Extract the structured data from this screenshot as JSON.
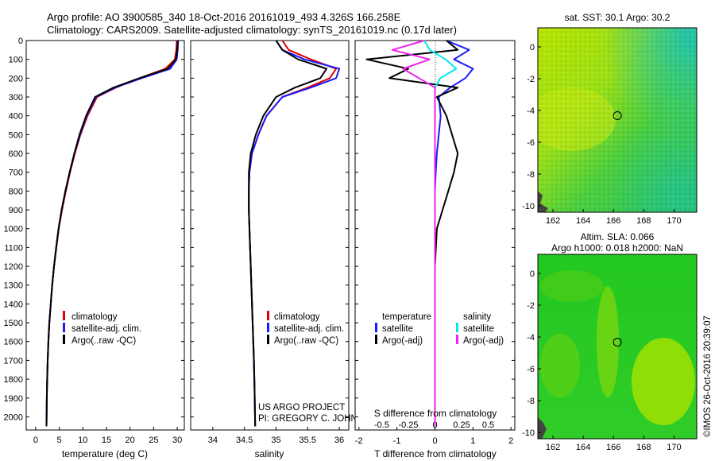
{
  "header": {
    "line1": "Argo profile: AO 3900585_340 18-Oct-2016 20161019_493 4.326S 166.258E",
    "line2": "Climatology: CARS2009. Satellite-adjusted climatology: synTS_20161019.nc (0.17d later)"
  },
  "colors": {
    "red": "#e00000",
    "blue": "#1a1aff",
    "black": "#000000",
    "cyan": "#00e8e8",
    "magenta": "#ee22ee"
  },
  "credit": {
    "line1": "US ARGO PROJECT",
    "line2": "PI: GREGORY C. JOHNSON"
  },
  "watermark": "©IMOS 26-Oct-2016 20:39:07",
  "chart_data": [
    {
      "type": "line",
      "id": "temperature",
      "xlabel": "temperature (deg C)",
      "xlim": [
        -2,
        31.5
      ],
      "ylim": [
        0,
        2070
      ],
      "y_reversed": true,
      "xticks": [
        0,
        5,
        10,
        15,
        20,
        25,
        30
      ],
      "yticks": [
        0,
        100,
        200,
        300,
        400,
        500,
        600,
        700,
        800,
        900,
        1000,
        1100,
        1200,
        1300,
        1400,
        1500,
        1600,
        1700,
        1800,
        1900,
        2000
      ],
      "legend": [
        "climatology",
        "satellite-adj. clim.",
        "Argo(..raw -QC)"
      ],
      "series": [
        {
          "name": "climatology",
          "color": "#e00000",
          "x": [
            29.9,
            29.8,
            29.5,
            27.5,
            22.0,
            17.0,
            13.0,
            11.0,
            9.5,
            8.3,
            7.3,
            6.4,
            5.6,
            4.9,
            4.4,
            3.9,
            3.5,
            3.2,
            2.9,
            2.7,
            2.55,
            2.4,
            2.3
          ],
          "y": [
            0,
            50,
            100,
            150,
            200,
            250,
            300,
            400,
            500,
            600,
            700,
            800,
            900,
            1000,
            1100,
            1200,
            1300,
            1400,
            1500,
            1600,
            1700,
            1850,
            2050
          ]
        },
        {
          "name": "satellite-adj. clim.",
          "color": "#1a1aff",
          "x": [
            30.2,
            30.1,
            29.9,
            28.5,
            22.5,
            16.8,
            12.8,
            10.8,
            9.4,
            8.2,
            7.2,
            6.3,
            5.5,
            4.85,
            4.35,
            3.9,
            3.5,
            3.2,
            2.9,
            2.7,
            2.55,
            2.4,
            2.3
          ],
          "y": [
            0,
            50,
            100,
            150,
            200,
            250,
            300,
            400,
            500,
            600,
            700,
            800,
            900,
            1000,
            1100,
            1200,
            1300,
            1400,
            1500,
            1600,
            1700,
            1850,
            2050
          ]
        },
        {
          "name": "Argo(..raw -QC)",
          "color": "#000000",
          "x": [
            30.1,
            30.0,
            29.7,
            28.0,
            22.0,
            16.5,
            12.6,
            10.7,
            9.3,
            8.2,
            7.2,
            6.3,
            5.5,
            4.85,
            4.35,
            3.9,
            3.5,
            3.2,
            2.9,
            2.7,
            2.55,
            2.4,
            2.3
          ],
          "y": [
            0,
            50,
            100,
            150,
            200,
            250,
            300,
            400,
            500,
            600,
            700,
            800,
            900,
            1000,
            1100,
            1200,
            1300,
            1400,
            1500,
            1600,
            1700,
            1850,
            2050
          ]
        }
      ]
    },
    {
      "type": "line",
      "id": "salinity",
      "xlabel": "salinity",
      "xlim": [
        33.65,
        36.15
      ],
      "ylim": [
        0,
        2070
      ],
      "y_reversed": true,
      "xticks": [
        34,
        34.5,
        35,
        35.5,
        36
      ],
      "xticklabels": [
        "34",
        "34.5",
        "35",
        "35.5",
        "36"
      ],
      "legend": [
        "climatology",
        "satellite-adj. clim.",
        "Argo(..raw -QC)"
      ],
      "series": [
        {
          "name": "climatology",
          "color": "#e00000",
          "x": [
            35.1,
            35.2,
            35.55,
            35.95,
            35.85,
            35.5,
            35.1,
            34.85,
            34.72,
            34.62,
            34.58,
            34.57,
            34.57,
            34.58,
            34.59,
            34.6,
            34.61,
            34.62,
            34.63,
            34.64,
            34.65,
            34.66,
            34.67
          ],
          "y": [
            0,
            50,
            100,
            150,
            200,
            250,
            300,
            400,
            500,
            600,
            700,
            800,
            900,
            1000,
            1100,
            1200,
            1300,
            1400,
            1500,
            1600,
            1700,
            1850,
            2050
          ]
        },
        {
          "name": "satellite-adj. clim.",
          "color": "#1a1aff",
          "x": [
            35.0,
            35.1,
            35.45,
            36.0,
            35.95,
            35.55,
            35.1,
            34.85,
            34.72,
            34.62,
            34.58,
            34.57,
            34.57,
            34.58,
            34.59,
            34.6,
            34.61,
            34.62,
            34.63,
            34.64,
            34.65,
            34.66,
            34.67
          ],
          "y": [
            0,
            50,
            100,
            150,
            200,
            250,
            300,
            400,
            500,
            600,
            700,
            800,
            900,
            1000,
            1100,
            1200,
            1300,
            1400,
            1500,
            1600,
            1700,
            1850,
            2050
          ]
        },
        {
          "name": "Argo(..raw -QC)",
          "color": "#000000",
          "x": [
            35.0,
            35.1,
            35.35,
            35.8,
            35.7,
            35.3,
            35.0,
            34.8,
            34.68,
            34.6,
            34.57,
            34.57,
            34.57,
            34.58,
            34.59,
            34.6,
            34.61,
            34.62,
            34.63,
            34.64,
            34.65,
            34.66,
            34.67
          ],
          "y": [
            0,
            50,
            100,
            150,
            200,
            250,
            300,
            400,
            500,
            600,
            700,
            800,
            900,
            1000,
            1100,
            1200,
            1300,
            1400,
            1500,
            1600,
            1700,
            1850,
            2050
          ]
        }
      ]
    },
    {
      "type": "line",
      "id": "differences",
      "xlabel": "T difference from climatology",
      "xlabel_top": "S difference from climatology",
      "xlim_T": [
        -2.1,
        2.1
      ],
      "xlim_S": [
        -0.75,
        0.75
      ],
      "ylim": [
        0,
        2070
      ],
      "y_reversed": true,
      "xticks_T": [
        -2,
        -1,
        0,
        1,
        2
      ],
      "xticks_S": [
        -0.5,
        -0.25,
        0,
        0.25,
        0.5
      ],
      "xticklabels_S": [
        "-0.5",
        "-0.25",
        "0",
        "0.25",
        "0.5"
      ],
      "legend_left_title": "temperature",
      "legend_right_title": "salinity",
      "legend": [
        "satellite",
        "Argo(-adj)",
        "satellite",
        "Argo(-adj)"
      ],
      "series": [
        {
          "name": "satellite",
          "group": "temperature",
          "axis": "T",
          "color": "#1a1aff",
          "x": [
            0.3,
            0.9,
            0.5,
            1.0,
            0.8,
            0.4,
            0.1,
            0.15,
            0.1,
            0.05,
            0.02,
            0.0,
            0.0,
            0.0,
            0.0,
            0.0,
            0.0,
            0.0,
            0.0,
            0.0
          ],
          "y": [
            0,
            50,
            100,
            150,
            200,
            250,
            300,
            400,
            500,
            600,
            700,
            800,
            900,
            1000,
            1200,
            1400,
            1600,
            1800,
            1900,
            2050
          ]
        },
        {
          "name": "Argo(-adj)",
          "group": "temperature",
          "axis": "T",
          "color": "#000000",
          "x": [
            0.3,
            0.6,
            -1.8,
            -0.7,
            -1.2,
            0.6,
            0.05,
            0.3,
            0.45,
            0.6,
            0.5,
            0.35,
            0.2,
            0.05,
            0.0,
            0.0,
            0.0,
            0.0,
            0.0,
            0.0
          ],
          "y": [
            0,
            50,
            100,
            150,
            200,
            250,
            300,
            400,
            500,
            600,
            700,
            800,
            900,
            1000,
            1200,
            1400,
            1600,
            1800,
            1900,
            2050
          ]
        },
        {
          "name": "satellite",
          "group": "salinity",
          "axis": "S",
          "color": "#00e8e8",
          "x": [
            -0.1,
            -0.05,
            0.1,
            0.2,
            0.05,
            0.0,
            0.0,
            0.0,
            0.0,
            0.0,
            0.0,
            0.0,
            0.0,
            0.0,
            0.0,
            0.0,
            0.0,
            0.0,
            0.0,
            0.0
          ],
          "y": [
            0,
            50,
            100,
            150,
            200,
            250,
            300,
            400,
            500,
            600,
            700,
            800,
            900,
            1000,
            1200,
            1400,
            1600,
            1800,
            1900,
            2050
          ]
        },
        {
          "name": "Argo(-adj)",
          "group": "salinity",
          "axis": "S",
          "color": "#ee22ee",
          "x": [
            -0.1,
            -0.4,
            -0.05,
            -0.3,
            -0.15,
            0.0,
            0.0,
            0.0,
            0.0,
            0.0,
            0.0,
            0.0,
            0.0,
            0.0,
            0.0,
            0.0,
            0.0,
            0.0,
            0.0,
            0.0
          ],
          "y": [
            0,
            50,
            100,
            150,
            200,
            250,
            300,
            400,
            500,
            600,
            700,
            800,
            900,
            1000,
            1200,
            1400,
            1600,
            1800,
            1900,
            2050
          ]
        }
      ]
    },
    {
      "type": "heatmap",
      "id": "sst-map",
      "title": "sat. SST: 30.1  Argo: 30.2",
      "xlim": [
        161,
        171.5
      ],
      "ylim": [
        -10.4,
        1.2
      ],
      "xticks": [
        162,
        164,
        166,
        168,
        170
      ],
      "yticks": [
        0,
        -2,
        -4,
        -6,
        -8,
        -10
      ],
      "argo_position": [
        166.258,
        -4.326
      ]
    },
    {
      "type": "heatmap",
      "id": "sla-map",
      "title_line1": "Altim. SLA: 0.066",
      "title_line2": "Argo h1000: 0.018 h2000: NaN",
      "xlim": [
        161,
        171.5
      ],
      "ylim": [
        -10.4,
        1.2
      ],
      "xticks": [
        162,
        164,
        166,
        168,
        170
      ],
      "yticks": [
        0,
        -2,
        -4,
        -6,
        -8,
        -10
      ],
      "argo_position": [
        166.258,
        -4.326
      ]
    }
  ]
}
